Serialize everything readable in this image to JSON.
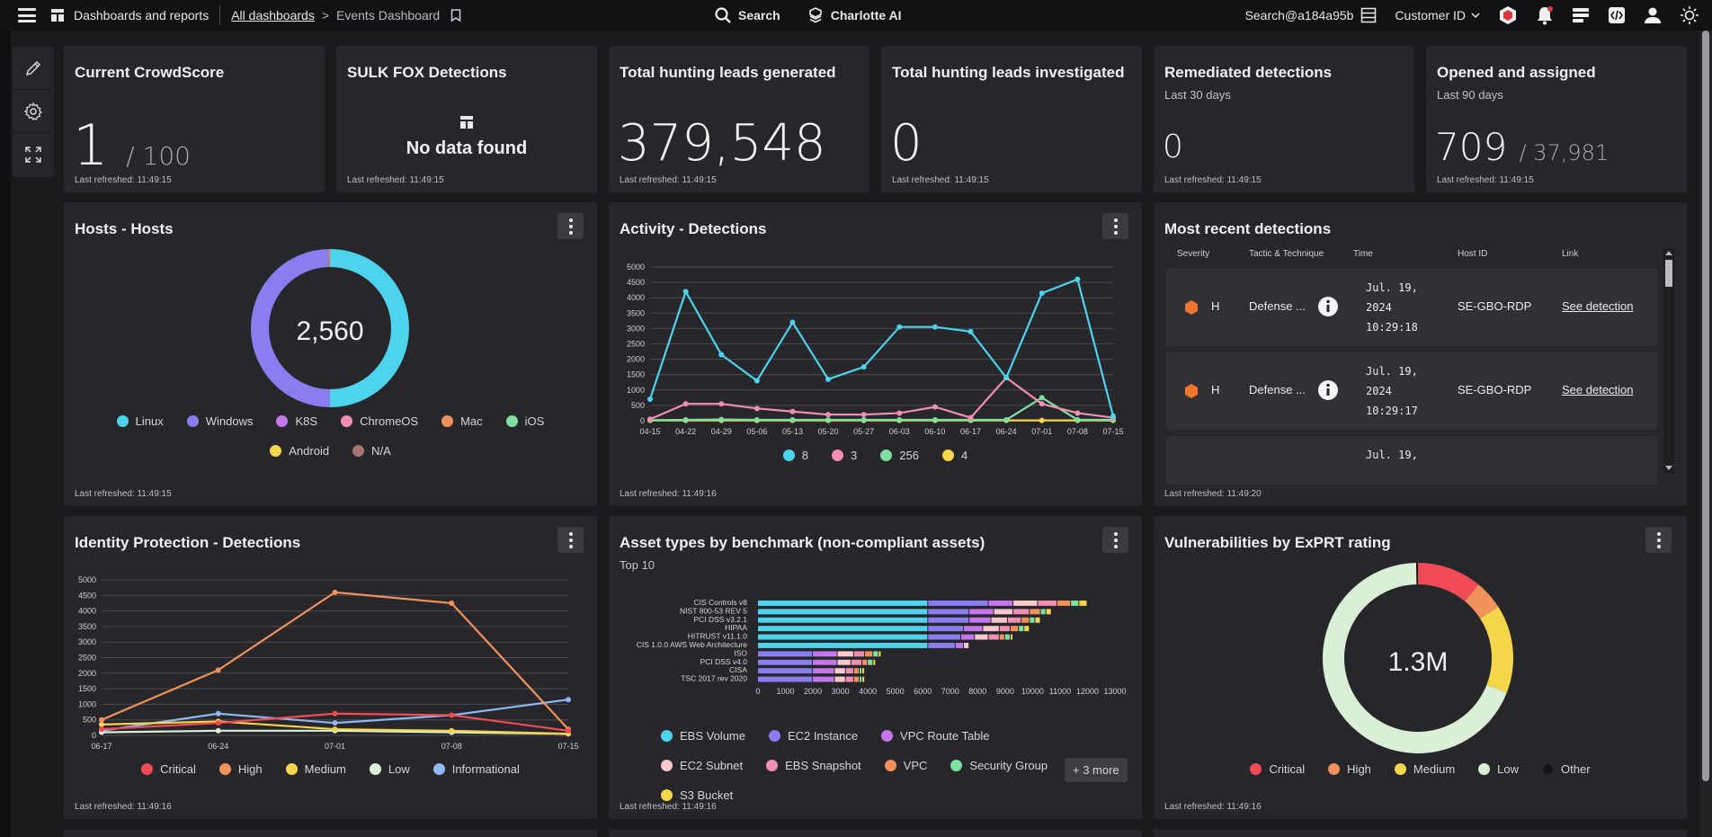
{
  "topbar": {
    "app_title": "Dashboards and reports",
    "breadcrumb_link": "All dashboards",
    "breadcrumb_sep": ">",
    "breadcrumb_current": "Events Dashboard",
    "search_label": "Search",
    "charlotte_label": "Charlotte AI",
    "search_scope": "Search@a184a95b",
    "customer_id_label": "Customer ID"
  },
  "refreshed": "Last refreshed: 11:49:15",
  "refreshed2": "Last refreshed: 11:49:16",
  "refreshed3": "Last refreshed: 11:49:20",
  "kpis": {
    "crowdscore": {
      "title": "Current CrowdScore",
      "value": "1",
      "of": "/ 100"
    },
    "sulk": {
      "title": "SULK FOX Detections",
      "empty": "No data found"
    },
    "leads_generated": {
      "title": "Total hunting leads generated",
      "value": "379,548"
    },
    "leads_investigated": {
      "title": "Total hunting leads investigated",
      "value": "0"
    },
    "remediated": {
      "title": "Remediated detections",
      "sub": "Last 30 days",
      "value": "0"
    },
    "opened": {
      "title": "Opened and assigned",
      "sub": "Last 90 days",
      "value": "709",
      "of": "/ 37,981"
    }
  },
  "hosts": {
    "title": "Hosts - Hosts",
    "center": "2,560",
    "legend": [
      {
        "label": "Linux",
        "color": "#4dd4ec"
      },
      {
        "label": "Windows",
        "color": "#8a7df0"
      },
      {
        "label": "K8S",
        "color": "#c477ec"
      },
      {
        "label": "ChromeOS",
        "color": "#f08fb1"
      },
      {
        "label": "Mac",
        "color": "#f1925c"
      },
      {
        "label": "iOS",
        "color": "#7de0a0"
      },
      {
        "label": "Android",
        "color": "#f5d54a"
      },
      {
        "label": "N/A",
        "color": "#a9746d"
      }
    ]
  },
  "activity": {
    "title": "Activity - Detections",
    "legend": [
      {
        "label": "8",
        "color": "#4dd4ec"
      },
      {
        "label": "3",
        "color": "#f08fb1"
      },
      {
        "label": "256",
        "color": "#7de0a0"
      },
      {
        "label": "4",
        "color": "#f5d54a"
      }
    ]
  },
  "recent": {
    "title": "Most recent detections",
    "headers": [
      "Severity",
      "Tactic & Technique",
      "Time",
      "Host ID",
      "Link"
    ],
    "rows": [
      {
        "sev": "H",
        "tactic": "Defense ...",
        "time1": "Jul. 19,",
        "time2": "2024",
        "time3": "10:29:18",
        "host": "SE-GBO-RDP",
        "link": "See detection"
      },
      {
        "sev": "H",
        "tactic": "Defense ...",
        "time1": "Jul. 19,",
        "time2": "2024",
        "time3": "10:29:17",
        "host": "SE-GBO-RDP",
        "link": "See detection"
      },
      {
        "time1": "Jul. 19,"
      }
    ]
  },
  "identity": {
    "title": "Identity Protection - Detections",
    "legend": [
      {
        "label": "Critical",
        "color": "#f04a56"
      },
      {
        "label": "High",
        "color": "#f1925c"
      },
      {
        "label": "Medium",
        "color": "#f5d54a"
      },
      {
        "label": "Low",
        "color": "#d9f0d6"
      },
      {
        "label": "Informational",
        "color": "#8fb8f2"
      }
    ]
  },
  "assets": {
    "title": "Asset types by benchmark (non-compliant assets)",
    "sub": "Top 10",
    "legend": [
      {
        "label": "EBS Volume",
        "color": "#4dd4ec"
      },
      {
        "label": "EC2 Instance",
        "color": "#8a7df0"
      },
      {
        "label": "VPC Route Table",
        "color": "#c477ec"
      },
      {
        "label": "EC2 Subnet",
        "color": "#f7c9cf"
      },
      {
        "label": "EBS Snapshot",
        "color": "#f08fb1"
      },
      {
        "label": "VPC",
        "color": "#f1925c"
      },
      {
        "label": "Security Group",
        "color": "#7de0a0"
      },
      {
        "label": "S3 Bucket",
        "color": "#f5d54a"
      }
    ],
    "more": "+ 3 more"
  },
  "vulns": {
    "title": "Vulnerabilities by ExPRT rating",
    "center": "1.3M",
    "legend": [
      {
        "label": "Critical",
        "color": "#f04a56"
      },
      {
        "label": "High",
        "color": "#f1925c"
      },
      {
        "label": "Medium",
        "color": "#f5d54a"
      },
      {
        "label": "Low",
        "color": "#d9f0d6"
      },
      {
        "label": "Other",
        "color": "#141416"
      }
    ]
  },
  "chart_data": [
    {
      "type": "pie",
      "title": "Hosts - Hosts",
      "categories": [
        "Linux",
        "Windows",
        "K8S",
        "ChromeOS",
        "Mac",
        "iOS",
        "Android",
        "N/A"
      ],
      "values": [
        1280,
        1270,
        3,
        2,
        2,
        1,
        1,
        1
      ],
      "center_label": "2,560"
    },
    {
      "type": "line",
      "title": "Activity - Detections",
      "x": [
        "04-15",
        "04-22",
        "04-29",
        "05-06",
        "05-13",
        "05-20",
        "05-27",
        "06-03",
        "06-10",
        "06-17",
        "06-24",
        "07-01",
        "07-08",
        "07-15"
      ],
      "ylim": [
        0,
        5000
      ],
      "yticks": [
        0,
        500,
        1000,
        1500,
        2000,
        2500,
        3000,
        3500,
        4000,
        4500,
        5000
      ],
      "series": [
        {
          "name": "8",
          "color": "#4dd4ec",
          "values": [
            700,
            4200,
            2150,
            1300,
            3200,
            1350,
            1750,
            3050,
            3050,
            2900,
            1400,
            4150,
            4600,
            150
          ]
        },
        {
          "name": "3",
          "color": "#f08fb1",
          "values": [
            50,
            550,
            550,
            400,
            300,
            200,
            200,
            250,
            450,
            100,
            1400,
            550,
            250,
            100
          ]
        },
        {
          "name": "256",
          "color": "#7de0a0",
          "values": [
            20,
            30,
            40,
            30,
            30,
            30,
            30,
            30,
            30,
            30,
            30,
            750,
            30,
            30
          ]
        },
        {
          "name": "4",
          "color": "#f5d54a",
          "values": [
            10,
            10,
            10,
            10,
            10,
            10,
            10,
            10,
            10,
            10,
            10,
            10,
            10,
            10
          ]
        }
      ]
    },
    {
      "type": "line",
      "title": "Identity Protection - Detections",
      "x": [
        "06-17",
        "06-24",
        "07-01",
        "07-08",
        "07-15"
      ],
      "ylim": [
        0,
        5000
      ],
      "yticks": [
        0,
        500,
        1000,
        1500,
        2000,
        2500,
        3000,
        3500,
        4000,
        4500,
        5000
      ],
      "series": [
        {
          "name": "Critical",
          "color": "#f04a56",
          "values": [
            200,
            400,
            700,
            650,
            150
          ]
        },
        {
          "name": "High",
          "color": "#f1925c",
          "values": [
            500,
            2100,
            4600,
            4250,
            200
          ]
        },
        {
          "name": "Medium",
          "color": "#f5d54a",
          "values": [
            350,
            450,
            200,
            150,
            50
          ]
        },
        {
          "name": "Low",
          "color": "#d9f0d6",
          "values": [
            100,
            150,
            150,
            100,
            50
          ]
        },
        {
          "name": "Informational",
          "color": "#8fb8f2",
          "values": [
            150,
            700,
            400,
            650,
            1150
          ]
        }
      ]
    },
    {
      "type": "bar",
      "orientation": "horizontal",
      "stacked": true,
      "title": "Asset types by benchmark (non-compliant assets)",
      "subtitle": "Top 10",
      "categories": [
        "CIS Controls v8",
        "NIST 800-53 REV 5",
        "PCI DSS v3.2.1",
        "HIPAA",
        "HITRUST v11.1.0",
        "CIS 1.0.0 AWS Web Architecture",
        "ISO",
        "PCI DSS v4.0",
        "CISA",
        "TSC 2017 rev 2020"
      ],
      "xlim": [
        0,
        13000
      ],
      "xticks": [
        0,
        1000,
        2000,
        3000,
        4000,
        5000,
        6000,
        7000,
        8000,
        9000,
        10000,
        11000,
        12000,
        13000
      ],
      "series": [
        {
          "name": "EBS Volume",
          "color": "#4dd4ec",
          "values": [
            6200,
            6200,
            6200,
            6200,
            6200,
            6200,
            0,
            0,
            0,
            0
          ]
        },
        {
          "name": "EC2 Instance",
          "color": "#8a7df0",
          "values": [
            2200,
            1500,
            1500,
            1300,
            1200,
            1000,
            2000,
            2000,
            2000,
            2000
          ]
        },
        {
          "name": "VPC Route Table",
          "color": "#c477ec",
          "values": [
            900,
            900,
            800,
            700,
            500,
            300,
            900,
            900,
            800,
            800
          ]
        },
        {
          "name": "EC2 Subnet",
          "color": "#f7c9cf",
          "values": [
            900,
            700,
            600,
            600,
            500,
            200,
            600,
            500,
            400,
            400
          ]
        },
        {
          "name": "EBS Snapshot",
          "color": "#f08fb1",
          "values": [
            700,
            600,
            500,
            400,
            400,
            0,
            400,
            400,
            300,
            300
          ]
        },
        {
          "name": "VPC",
          "color": "#f1925c",
          "values": [
            500,
            400,
            300,
            300,
            200,
            0,
            300,
            200,
            200,
            200
          ]
        },
        {
          "name": "Security Group",
          "color": "#7de0a0",
          "values": [
            300,
            200,
            200,
            200,
            200,
            0,
            200,
            200,
            100,
            100
          ]
        },
        {
          "name": "S3 Bucket",
          "color": "#f5d54a",
          "values": [
            300,
            200,
            200,
            200,
            100,
            0,
            100,
            100,
            100,
            100
          ]
        }
      ]
    },
    {
      "type": "pie",
      "title": "Vulnerabilities by ExPRT rating",
      "categories": [
        "Critical",
        "High",
        "Medium",
        "Low",
        "Other"
      ],
      "values": [
        11,
        5,
        15,
        69,
        0.3
      ],
      "center_label": "1.3M"
    }
  ]
}
